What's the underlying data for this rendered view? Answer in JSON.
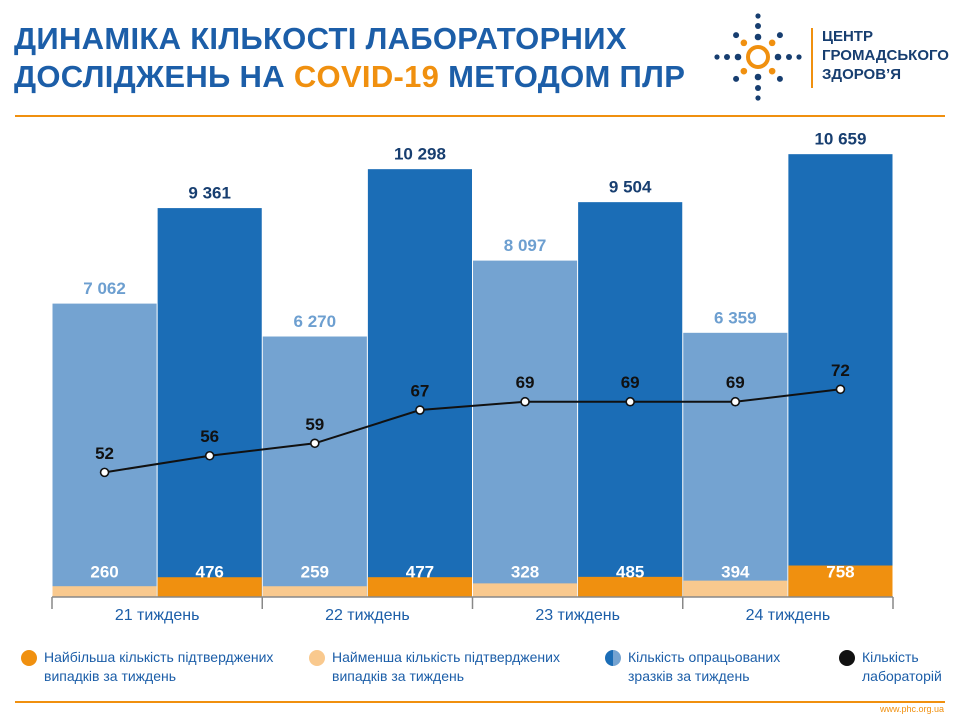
{
  "header": {
    "title": [
      "ДИНАМІКА КІЛЬКОСТІ ЛАБОРАТОРНИХ",
      "ДОСЛІДЖЕНЬ НА",
      "COVID-19",
      "МЕТОДОМ ПЛР"
    ],
    "logo": [
      "ЦЕНТР",
      "ГРОМАДСЬКОГО",
      "ЗДОРОВ’Я"
    ]
  },
  "chart_data": {
    "type": "bar",
    "categories": [
      "21 тиждень",
      null,
      "22 тиждень",
      null,
      "23 тиждень",
      null,
      "24 тиждень",
      null
    ],
    "ylim": [
      0,
      11000
    ],
    "y2lim": [
      22,
      132
    ],
    "series": [
      {
        "name": "Найбільша кількість підтверджених випадків за тиждень",
        "type": "bar",
        "color": "#f0900f",
        "values": [
          null,
          476,
          null,
          477,
          null,
          485,
          null,
          758
        ]
      },
      {
        "name": "Найменша кількість підтверджених випадків за тиждень",
        "type": "bar",
        "color": "#f9c98e",
        "values": [
          260,
          null,
          259,
          null,
          328,
          null,
          394,
          null
        ]
      },
      {
        "name": "Кількість опрацьованих зразків за тиждень",
        "type": "bar",
        "colors": [
          "#74a3d1",
          "#1b6db6"
        ],
        "label_colors": [
          "#6d9fd0",
          "#173e70"
        ],
        "values": [
          7062,
          9361,
          6270,
          10298,
          8097,
          9504,
          6359,
          10659
        ],
        "value_labels": [
          "7 062",
          "9 361",
          "6 270",
          "10 298",
          "8 097",
          "9 504",
          "6 359",
          "10 659"
        ]
      },
      {
        "name": "Кількість лабораторій",
        "type": "line",
        "axis": "y2",
        "color": "#111111",
        "values": [
          52,
          56,
          59,
          67,
          69,
          69,
          69,
          72
        ]
      }
    ]
  },
  "footer": {
    "url": "www.phc.org.ua"
  }
}
